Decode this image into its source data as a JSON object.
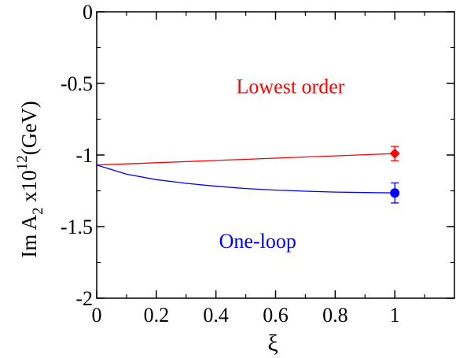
{
  "chart_data": {
    "type": "line",
    "xlabel": "ξ",
    "ylabel": {
      "prefix": "Im A",
      "subscript": "2",
      "mid": " x10",
      "superscript": "12",
      "suffix": "(GeV)"
    },
    "xlim": [
      0,
      1.2
    ],
    "ylim": [
      -2,
      0
    ],
    "x_ticks": [
      0,
      0.2,
      0.4,
      0.6,
      0.8,
      1
    ],
    "x_tick_labels": [
      "0",
      "0.2",
      "0.4",
      "0.6",
      "0.8",
      "1"
    ],
    "y_ticks": [
      0,
      -0.5,
      -1,
      -1.5,
      -2
    ],
    "y_tick_labels": [
      "0",
      "-0.5",
      "-1",
      "-1.5",
      "-2"
    ],
    "grid": false,
    "series": [
      {
        "name": "Lowest order",
        "color": "#ff0000",
        "x": [
          0,
          0.1,
          0.2,
          0.3,
          0.4,
          0.5,
          0.6,
          0.7,
          0.8,
          0.9,
          1.0
        ],
        "y": [
          -1.07,
          -1.062,
          -1.054,
          -1.046,
          -1.038,
          -1.03,
          -1.022,
          -1.014,
          -1.006,
          -0.998,
          -0.99
        ],
        "point": {
          "x": 1,
          "y": -0.99,
          "err": 0.05,
          "marker": "diamond"
        }
      },
      {
        "name": "One-loop",
        "color": "#0000ff",
        "x": [
          0,
          0.1,
          0.2,
          0.3,
          0.4,
          0.5,
          0.6,
          0.7,
          0.8,
          0.9,
          1.0
        ],
        "y": [
          -1.07,
          -1.134,
          -1.172,
          -1.198,
          -1.218,
          -1.234,
          -1.245,
          -1.253,
          -1.259,
          -1.262,
          -1.265
        ],
        "point": {
          "x": 1,
          "y": -1.265,
          "err": 0.07,
          "marker": "circle"
        }
      }
    ],
    "annotations": [
      {
        "text": "Lowest order",
        "color": "#ff0000",
        "x": 0.65,
        "y": -0.52
      },
      {
        "text": "One-loop",
        "color": "#0000ff",
        "x": 0.54,
        "y": -1.6
      }
    ]
  }
}
